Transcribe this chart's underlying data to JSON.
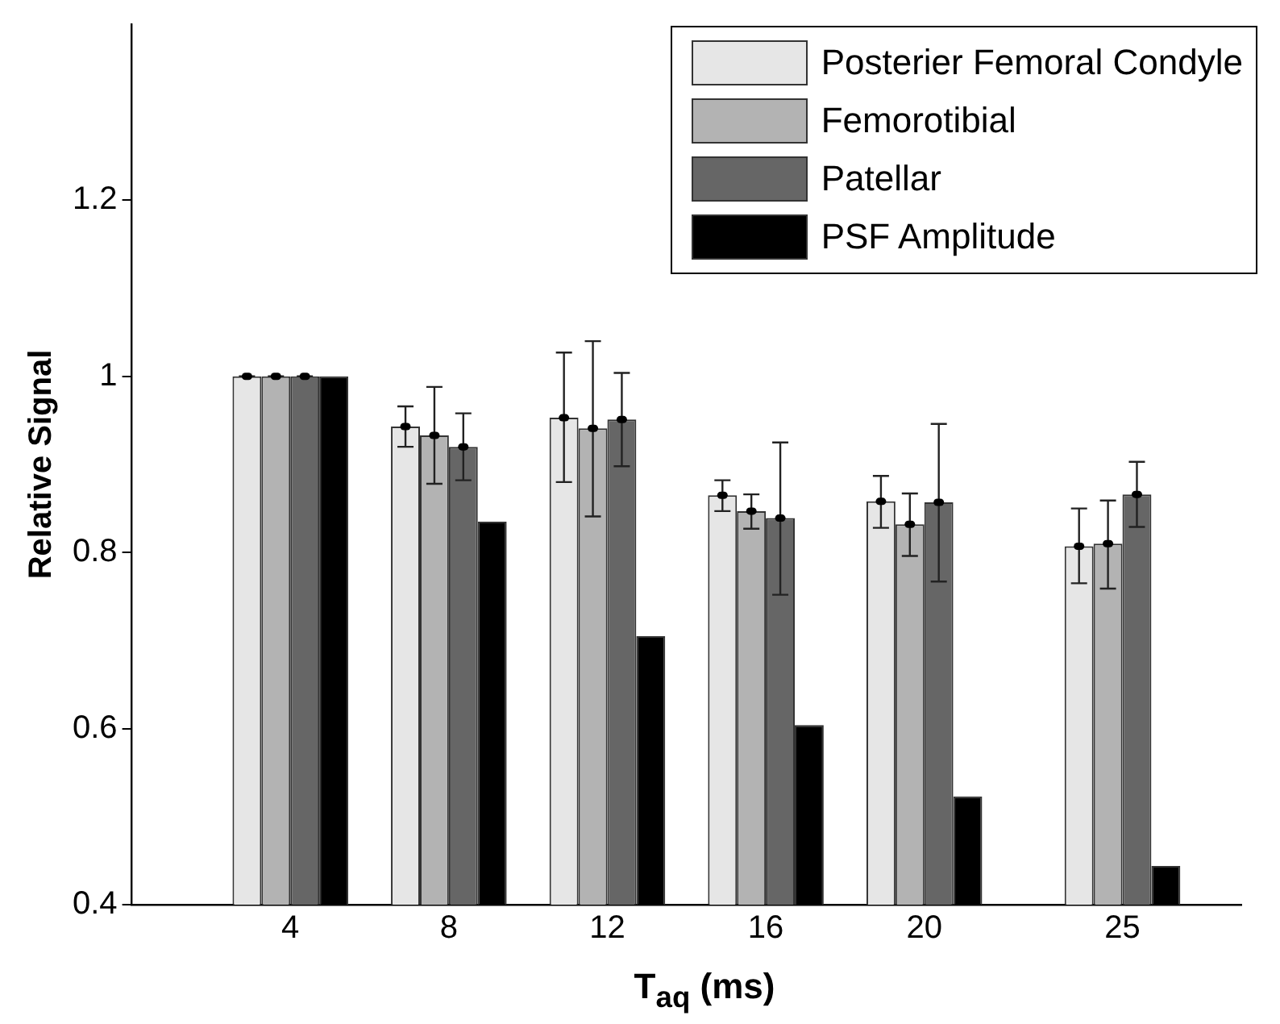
{
  "chart_data": {
    "type": "bar",
    "xlabel": "T$_{aq}$ (ms)",
    "ylabel": "Relative Signal",
    "x": [
      4,
      8,
      12,
      16,
      20,
      25
    ],
    "xlim": [
      0,
      28
    ],
    "xticks": [
      4,
      8,
      12,
      16,
      20,
      25
    ],
    "ylim": [
      0.4,
      1.4
    ],
    "yticks": [
      0.4,
      0.6,
      0.8,
      1,
      1.2
    ],
    "grid": false,
    "legend": "top right",
    "series": [
      {
        "name": "Posterier Femoral Condyle",
        "color": "#e6e6e6",
        "marker": "circle",
        "values": [
          1,
          0.943,
          0.953,
          0.865,
          0.858,
          0.807
        ],
        "errors": [
          0,
          [
            0.92,
            0.966
          ],
          [
            0.88,
            1.027
          ],
          [
            0.847,
            0.882
          ],
          [
            0.828,
            0.887
          ],
          [
            0.765,
            0.85
          ]
        ]
      },
      {
        "name": "Femorotibial",
        "color": "#b3b3b3",
        "marker": "circle",
        "values": [
          1,
          0.933,
          0.941,
          0.847,
          0.832,
          0.81
        ],
        "errors": [
          0,
          [
            0.878,
            0.988
          ],
          [
            0.841,
            1.04
          ],
          [
            0.827,
            0.866
          ],
          [
            0.796,
            0.867
          ],
          [
            0.759,
            0.859
          ]
        ]
      },
      {
        "name": "Patellar",
        "color": "#666666",
        "marker": "circle",
        "values": [
          1,
          0.92,
          0.951,
          0.839,
          0.857,
          0.866
        ],
        "errors": [
          0,
          [
            0.882,
            0.958
          ],
          [
            0.898,
            1.004
          ],
          [
            0.752,
            0.925
          ],
          [
            0.767,
            0.946
          ],
          [
            0.829,
            0.903
          ]
        ]
      },
      {
        "name": "PSF Amplitude",
        "color": "#000000",
        "values": [
          1,
          0.835,
          0.705,
          0.604,
          0.523,
          0.444
        ]
      }
    ]
  }
}
